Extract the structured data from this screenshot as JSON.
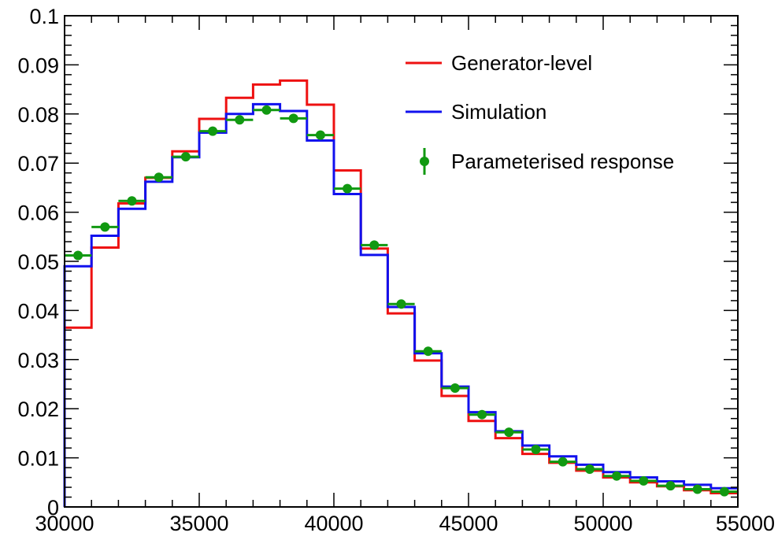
{
  "chart_data": {
    "type": "line",
    "title": "",
    "xlabel": "",
    "ylabel": "",
    "xlim": [
      30000,
      55000
    ],
    "ylim": [
      0,
      0.1
    ],
    "x_ticks": [
      30000,
      35000,
      40000,
      45000,
      50000,
      55000
    ],
    "x_tick_labels": [
      "30000",
      "35000",
      "40000",
      "45000",
      "50000",
      "55000"
    ],
    "y_ticks": [
      0,
      0.01,
      0.02,
      0.03,
      0.04,
      0.05,
      0.06,
      0.07,
      0.08,
      0.09,
      0.1
    ],
    "y_tick_labels": [
      "0",
      "0.01",
      "0.02",
      "0.03",
      "0.04",
      "0.05",
      "0.06",
      "0.07",
      "0.08",
      "0.09",
      "0.1"
    ],
    "bin_edges": [
      30000,
      31000,
      32000,
      33000,
      34000,
      35000,
      36000,
      37000,
      38000,
      39000,
      40000,
      41000,
      42000,
      43000,
      44000,
      45000,
      46000,
      47000,
      48000,
      49000,
      50000,
      51000,
      52000,
      53000,
      54000,
      55000
    ],
    "legend_position": "top-right",
    "grid": false,
    "series": [
      {
        "name": "Generator-level",
        "style": "histogram",
        "color": "#ee1111",
        "values": [
          0.0365,
          0.0528,
          0.0618,
          0.067,
          0.0724,
          0.079,
          0.0833,
          0.086,
          0.0868,
          0.0819,
          0.0685,
          0.0526,
          0.0394,
          0.0298,
          0.0226,
          0.0175,
          0.014,
          0.0108,
          0.009,
          0.0074,
          0.006,
          0.005,
          0.0042,
          0.0034,
          0.0028
        ]
      },
      {
        "name": "Simulation",
        "style": "histogram",
        "color": "#1111ee",
        "values": [
          0.049,
          0.0552,
          0.0607,
          0.0662,
          0.0712,
          0.0762,
          0.08,
          0.082,
          0.0806,
          0.0746,
          0.0637,
          0.0513,
          0.0407,
          0.0313,
          0.0245,
          0.0193,
          0.0154,
          0.0125,
          0.0103,
          0.0086,
          0.0071,
          0.006,
          0.0052,
          0.0045,
          0.0038
        ]
      },
      {
        "name": "Parameterised response",
        "style": "points",
        "color": "#119911",
        "values": [
          0.0512,
          0.057,
          0.0623,
          0.0671,
          0.0713,
          0.0765,
          0.0788,
          0.0808,
          0.0791,
          0.0757,
          0.0648,
          0.0533,
          0.0413,
          0.0317,
          0.0242,
          0.0188,
          0.0152,
          0.0117,
          0.0092,
          0.0077,
          0.0063,
          0.0053,
          0.0043,
          0.0036,
          0.0031
        ]
      }
    ]
  }
}
